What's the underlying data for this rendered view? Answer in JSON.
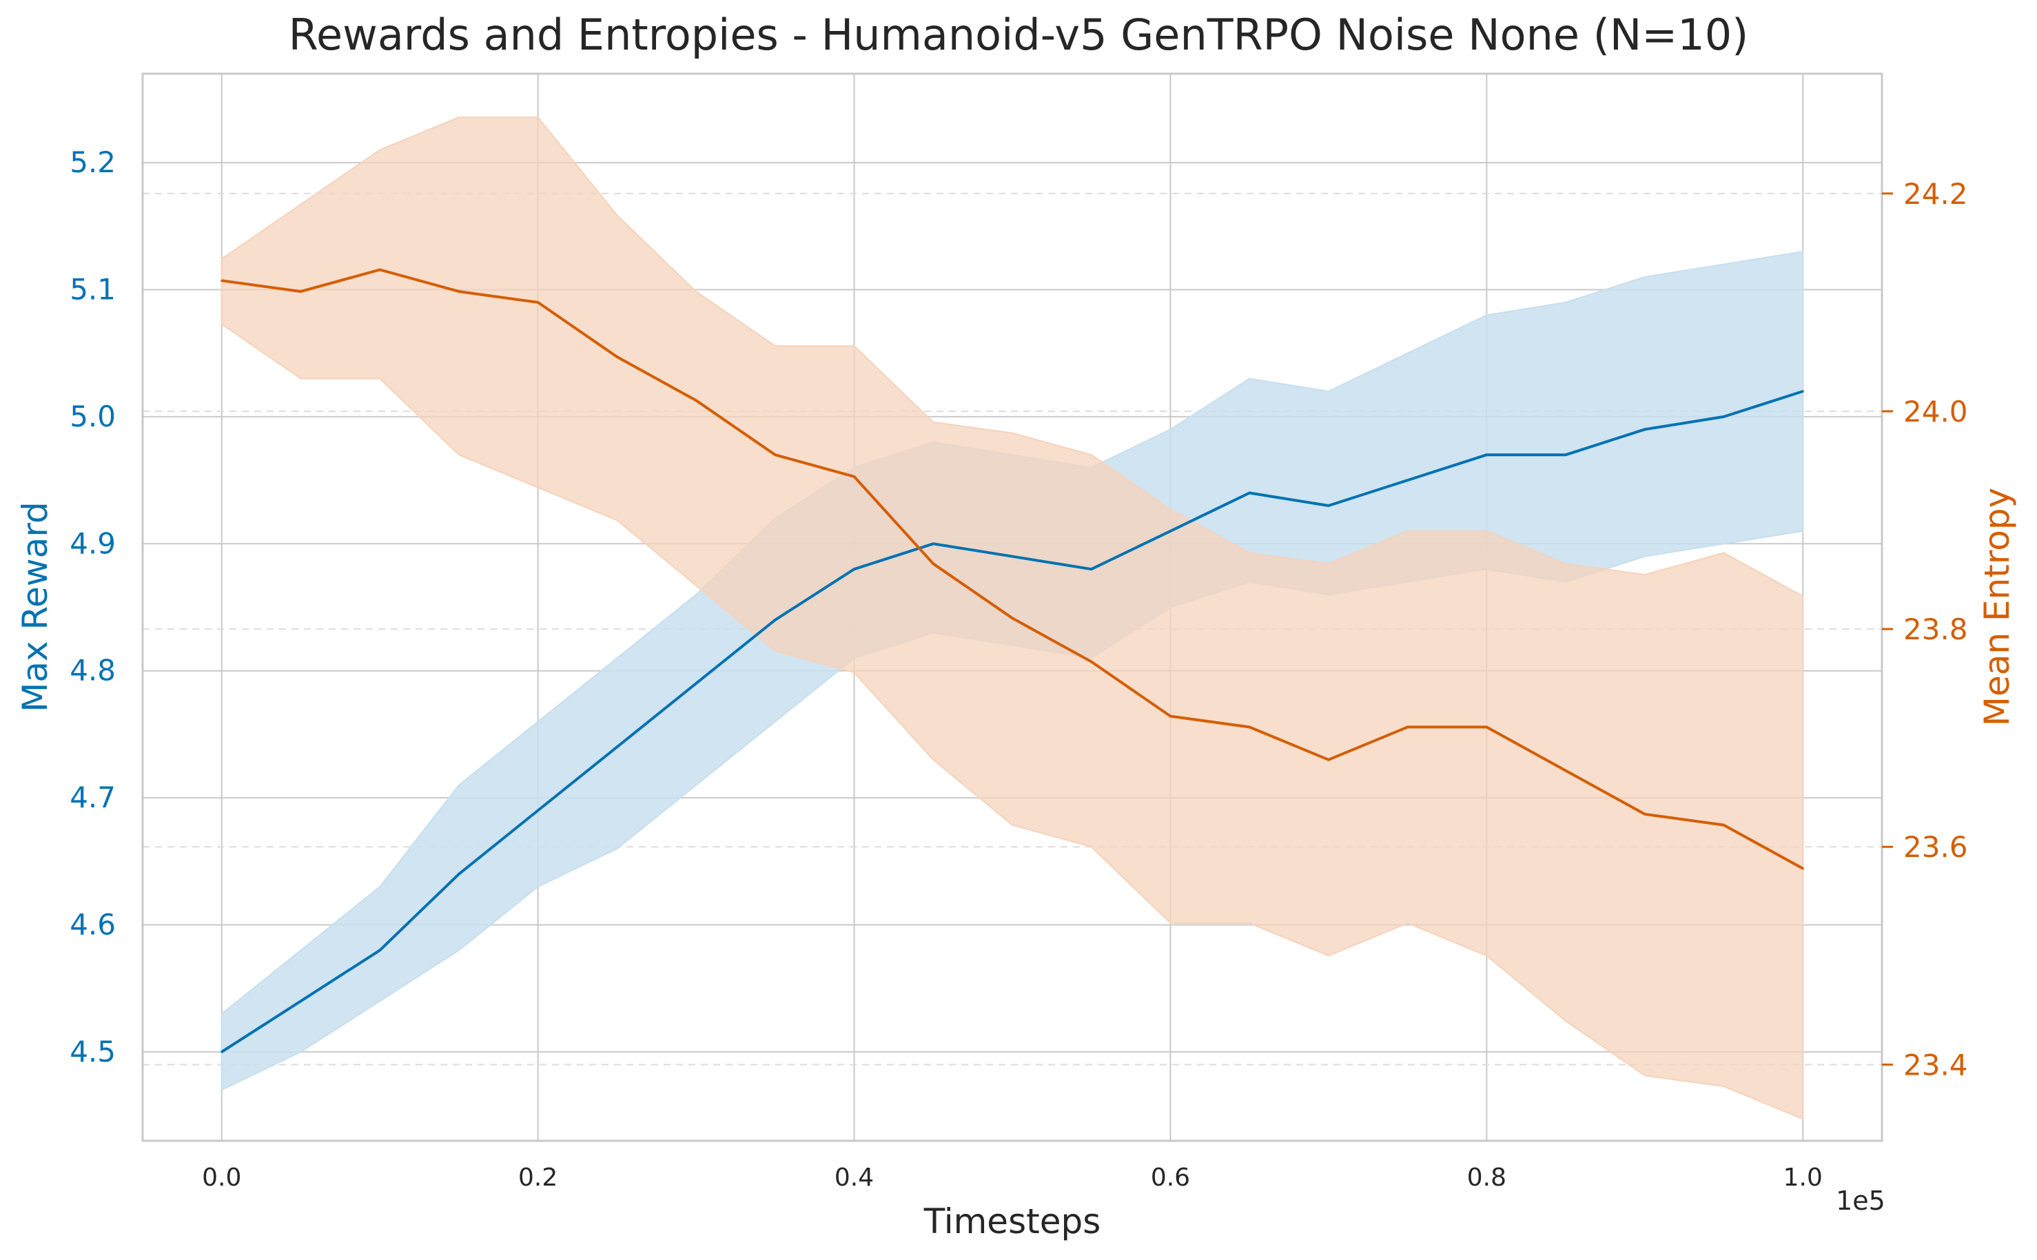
{
  "chart_data": {
    "type": "line",
    "title": "Rewards and Entropies - Humanoid-v5 GenTRPO Noise None (N=10)",
    "xlabel": "Timesteps",
    "x_offset_text": "1e5",
    "x_tick_labels": [
      "0.0",
      "0.2",
      "0.4",
      "0.6",
      "0.8",
      "1.0"
    ],
    "x_tick_values": [
      0.0,
      0.2,
      0.4,
      0.6,
      0.8,
      1.0
    ],
    "xlim": [
      -0.05,
      1.05
    ],
    "grid": true,
    "colors": {
      "reward": "#0072b2",
      "reward_band": "#c8dfee",
      "entropy": "#d55e00",
      "entropy_band": "#f5d3bb",
      "grid": "#c9c9c9",
      "right_grid": "#dddddd"
    },
    "y_left": {
      "label": "Max Reward",
      "tick_labels": [
        "4.5",
        "4.6",
        "4.7",
        "4.8",
        "4.9",
        "5.0",
        "5.1",
        "5.2"
      ],
      "tick_values": [
        4.5,
        4.6,
        4.7,
        4.8,
        4.9,
        5.0,
        5.1,
        5.2
      ],
      "ylim": [
        4.43,
        5.27
      ]
    },
    "y_right": {
      "label": "Mean Entropy",
      "tick_labels": [
        "23.4",
        "23.6",
        "23.8",
        "24.0",
        "24.2"
      ],
      "tick_values": [
        23.4,
        23.6,
        23.8,
        24.0,
        24.2
      ],
      "ylim": [
        23.33,
        24.31
      ]
    },
    "reward_series": {
      "name": "Max Reward",
      "x": [
        0.0,
        0.05,
        0.1,
        0.15,
        0.2,
        0.25,
        0.3,
        0.35,
        0.4,
        0.45,
        0.5,
        0.55,
        0.6,
        0.65,
        0.7,
        0.75,
        0.8,
        0.85,
        0.9,
        0.95,
        1.0
      ],
      "mean": [
        4.5,
        4.54,
        4.58,
        4.64,
        4.69,
        4.74,
        4.79,
        4.84,
        4.88,
        4.9,
        4.89,
        4.88,
        4.91,
        4.94,
        4.93,
        4.95,
        4.97,
        4.97,
        4.99,
        5.0,
        5.02
      ],
      "lower": [
        4.47,
        4.5,
        4.54,
        4.58,
        4.63,
        4.66,
        4.71,
        4.76,
        4.81,
        4.83,
        4.82,
        4.81,
        4.85,
        4.87,
        4.86,
        4.87,
        4.88,
        4.87,
        4.89,
        4.9,
        4.91
      ],
      "upper": [
        4.53,
        4.58,
        4.63,
        4.71,
        4.76,
        4.81,
        4.86,
        4.92,
        4.96,
        4.98,
        4.97,
        4.96,
        4.99,
        5.03,
        5.02,
        5.05,
        5.08,
        5.09,
        5.11,
        5.12,
        5.13
      ]
    },
    "entropy_series": {
      "name": "Mean Entropy",
      "x": [
        0.0,
        0.05,
        0.1,
        0.15,
        0.2,
        0.25,
        0.3,
        0.35,
        0.4,
        0.45,
        0.5,
        0.55,
        0.6,
        0.65,
        0.7,
        0.75,
        0.8,
        0.85,
        0.9,
        0.95,
        1.0
      ],
      "mean": [
        24.12,
        24.11,
        24.13,
        24.11,
        24.1,
        24.05,
        24.01,
        23.96,
        23.94,
        23.86,
        23.81,
        23.77,
        23.72,
        23.71,
        23.68,
        23.71,
        23.71,
        23.67,
        23.63,
        23.62,
        23.58
      ],
      "lower": [
        24.08,
        24.03,
        24.03,
        23.96,
        23.93,
        23.9,
        23.84,
        23.78,
        23.76,
        23.68,
        23.62,
        23.6,
        23.53,
        23.53,
        23.5,
        23.53,
        23.5,
        23.44,
        23.39,
        23.38,
        23.35
      ],
      "upper": [
        24.14,
        24.19,
        24.24,
        24.27,
        24.27,
        24.18,
        24.11,
        24.06,
        24.06,
        23.99,
        23.98,
        23.96,
        23.91,
        23.87,
        23.86,
        23.89,
        23.89,
        23.86,
        23.85,
        23.87,
        23.83
      ]
    }
  }
}
